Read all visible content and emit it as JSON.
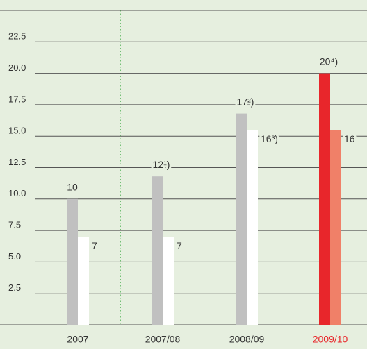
{
  "chart_data": {
    "type": "bar",
    "categories": [
      "2007",
      "2007/08",
      "2008/09",
      "2009/10"
    ],
    "category_colors": [
      "#333333",
      "#333333",
      "#333333",
      "#e8262b"
    ],
    "series": [
      {
        "colors": [
          "#c0c0c0",
          "#c0c0c0",
          "#c0c0c0",
          "#e8262b"
        ],
        "values": [
          10,
          11.8,
          16.8,
          20
        ],
        "value_labels": [
          "10",
          "12¹)",
          "17²)",
          "20⁴)"
        ]
      },
      {
        "colors": [
          "#ffffff",
          "#ffffff",
          "#ffffff",
          "#f08068"
        ],
        "values": [
          7,
          7,
          15.5,
          15.5
        ],
        "value_labels": [
          "7",
          "7",
          "16³)",
          "16"
        ]
      }
    ],
    "ylim": [
      0,
      25
    ],
    "yticks": [
      {
        "value": 0,
        "label": ""
      },
      2.5,
      {
        "value": 5,
        "label": "5.0"
      },
      7.5,
      {
        "value": 10,
        "label": "10.0"
      },
      12.5,
      {
        "value": 15,
        "label": "15.0"
      },
      17.5,
      {
        "value": 20,
        "label": "20.0"
      },
      22.5
    ],
    "grid": true
  }
}
